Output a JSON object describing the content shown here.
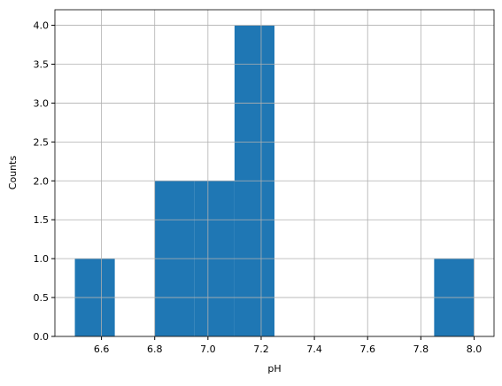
{
  "chart_data": {
    "type": "histogram",
    "x_label": "pH",
    "y_label": "Counts",
    "bins": [
      6.5,
      6.65,
      6.8,
      6.95,
      7.1,
      7.25,
      7.4,
      7.55,
      7.7,
      7.85,
      8.0
    ],
    "values": [
      1,
      0,
      2,
      2,
      4,
      0,
      0,
      0,
      0,
      1
    ],
    "color": "#1f77b4",
    "xlim": [
      6.425,
      8.075
    ],
    "xticks": [
      6.6,
      6.8,
      {
        "value": 7.0,
        "label": "7.0"
      },
      7.2,
      7.4,
      7.6,
      7.8,
      {
        "value": 8.0,
        "label": "8.0"
      }
    ],
    "ylim": [
      0,
      4.2
    ],
    "yticks": [
      {
        "value": 0,
        "label": "0.0"
      },
      0.5,
      {
        "value": 1,
        "label": "1.0"
      },
      1.5,
      {
        "value": 2,
        "label": "2.0"
      },
      2.5,
      {
        "value": 3,
        "label": "3.0"
      },
      3.5,
      {
        "value": 4,
        "label": "4.0"
      }
    ],
    "grid": true
  }
}
